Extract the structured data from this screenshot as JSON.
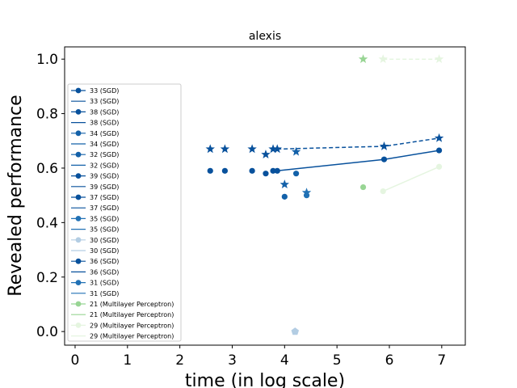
{
  "chart_data": {
    "type": "scatter",
    "title": "alexis",
    "xlabel": "time (in log scale)",
    "ylabel": "Revealed performance",
    "xlim": [
      -0.2,
      7.45
    ],
    "ylim": [
      -0.05,
      1.045
    ],
    "xticks": [
      0,
      1,
      2,
      3,
      4,
      5,
      6,
      7
    ],
    "yticks": [
      0.0,
      0.2,
      0.4,
      0.6,
      0.8,
      1.0
    ],
    "tick_labels_x": [
      "0",
      "1",
      "2",
      "3",
      "4",
      "5",
      "6",
      "7"
    ],
    "tick_labels_y": [
      "0.0",
      "0.2",
      "0.4",
      "0.6",
      "0.8",
      "1.0"
    ],
    "grid": false,
    "legend_position": "center-left",
    "colors": {
      "dark_blue": "#08519c",
      "mid_blue": "#2171b5",
      "light_blue": "#b3cde3",
      "green": "#98d594",
      "pale_green": "#e5f5e0"
    },
    "legend": [
      {
        "label": "33 (SGD)",
        "kind": "marker",
        "color": "#08519c"
      },
      {
        "label": "33 (SGD)",
        "kind": "line",
        "color": "#08519c"
      },
      {
        "label": "38 (SGD)",
        "kind": "marker",
        "color": "#08519c"
      },
      {
        "label": "38 (SGD)",
        "kind": "line",
        "color": "#08519c"
      },
      {
        "label": "34 (SGD)",
        "kind": "marker",
        "color": "#1361a9"
      },
      {
        "label": "34 (SGD)",
        "kind": "line",
        "color": "#1361a9"
      },
      {
        "label": "32 (SGD)",
        "kind": "marker",
        "color": "#1361a9"
      },
      {
        "label": "32 (SGD)",
        "kind": "line",
        "color": "#1361a9"
      },
      {
        "label": "39 (SGD)",
        "kind": "marker",
        "color": "#08519c"
      },
      {
        "label": "39 (SGD)",
        "kind": "line",
        "color": "#08519c"
      },
      {
        "label": "37 (SGD)",
        "kind": "marker",
        "color": "#08519c"
      },
      {
        "label": "37 (SGD)",
        "kind": "line",
        "color": "#08519c"
      },
      {
        "label": "35 (SGD)",
        "kind": "marker",
        "color": "#2171b5"
      },
      {
        "label": "35 (SGD)",
        "kind": "line",
        "color": "#2171b5"
      },
      {
        "label": "30 (SGD)",
        "kind": "marker",
        "color": "#b3cde3"
      },
      {
        "label": "30 (SGD)",
        "kind": "line",
        "color": "#b3cde3"
      },
      {
        "label": "36 (SGD)",
        "kind": "marker",
        "color": "#08519c"
      },
      {
        "label": "36 (SGD)",
        "kind": "line",
        "color": "#08519c"
      },
      {
        "label": "31 (SGD)",
        "kind": "marker",
        "color": "#2171b5"
      },
      {
        "label": "31 (SGD)",
        "kind": "line",
        "color": "#2171b5"
      },
      {
        "label": "21 (Multilayer Perceptron)",
        "kind": "marker",
        "color": "#98d594"
      },
      {
        "label": "21 (Multilayer Perceptron)",
        "kind": "line",
        "color": "#98d594"
      },
      {
        "label": "29 (Multilayer Perceptron)",
        "kind": "marker",
        "color": "#e5f5e0"
      },
      {
        "label": "29 (Multilayer Perceptron)",
        "kind": "line",
        "color": "#e5f5e0"
      }
    ],
    "points": [
      {
        "x": 2.58,
        "y": 0.59,
        "marker": "circle",
        "color": "#08519c"
      },
      {
        "x": 2.86,
        "y": 0.59,
        "marker": "circle",
        "color": "#08519c"
      },
      {
        "x": 3.38,
        "y": 0.59,
        "marker": "circle",
        "color": "#08519c"
      },
      {
        "x": 3.64,
        "y": 0.58,
        "marker": "circle",
        "color": "#08519c"
      },
      {
        "x": 3.78,
        "y": 0.59,
        "marker": "circle",
        "color": "#08519c"
      },
      {
        "x": 3.86,
        "y": 0.59,
        "marker": "circle",
        "color": "#08519c"
      },
      {
        "x": 4.0,
        "y": 0.495,
        "marker": "circle",
        "color": "#1361a9"
      },
      {
        "x": 4.22,
        "y": 0.58,
        "marker": "circle",
        "color": "#1361a9"
      },
      {
        "x": 4.42,
        "y": 0.5,
        "marker": "circle",
        "color": "#2171b5"
      },
      {
        "x": 2.58,
        "y": 0.67,
        "marker": "star",
        "color": "#08519c"
      },
      {
        "x": 2.86,
        "y": 0.67,
        "marker": "star",
        "color": "#08519c"
      },
      {
        "x": 3.38,
        "y": 0.67,
        "marker": "star",
        "color": "#08519c"
      },
      {
        "x": 3.64,
        "y": 0.65,
        "marker": "star",
        "color": "#08519c"
      },
      {
        "x": 3.78,
        "y": 0.67,
        "marker": "star",
        "color": "#08519c"
      },
      {
        "x": 3.86,
        "y": 0.67,
        "marker": "star",
        "color": "#08519c"
      },
      {
        "x": 4.0,
        "y": 0.54,
        "marker": "star",
        "color": "#1361a9"
      },
      {
        "x": 4.22,
        "y": 0.66,
        "marker": "star",
        "color": "#1361a9"
      },
      {
        "x": 4.42,
        "y": 0.51,
        "marker": "star",
        "color": "#2171b5"
      },
      {
        "x": 5.5,
        "y": 0.53,
        "marker": "circle",
        "color": "#98d594"
      },
      {
        "x": 5.5,
        "y": 1.0,
        "marker": "star",
        "color": "#98d594"
      },
      {
        "x": 4.2,
        "y": 0.0,
        "marker": "pentagon",
        "color": "#b3cde3"
      },
      {
        "x": 5.88,
        "y": 0.515,
        "marker": "circle",
        "color": "#e5f5e0"
      },
      {
        "x": 5.88,
        "y": 1.0,
        "marker": "star",
        "color": "#e5f5e0"
      },
      {
        "x": 6.95,
        "y": 0.605,
        "marker": "circle",
        "color": "#e5f5e0"
      },
      {
        "x": 6.95,
        "y": 1.0,
        "marker": "star",
        "color": "#e5f5e0"
      },
      {
        "x": 5.9,
        "y": 0.632,
        "marker": "circle",
        "color": "#08519c"
      },
      {
        "x": 6.95,
        "y": 0.665,
        "marker": "circle",
        "color": "#08519c"
      },
      {
        "x": 5.9,
        "y": 0.68,
        "marker": "star",
        "color": "#08519c"
      },
      {
        "x": 6.95,
        "y": 0.71,
        "marker": "star",
        "color": "#08519c"
      }
    ],
    "lines": [
      {
        "x": [
          3.86,
          5.9,
          6.95
        ],
        "y": [
          0.59,
          0.632,
          0.665
        ],
        "style": "solid",
        "color": "#08519c"
      },
      {
        "x": [
          3.86,
          5.9,
          6.95
        ],
        "y": [
          0.67,
          0.68,
          0.71
        ],
        "style": "dashed",
        "color": "#08519c"
      },
      {
        "x": [
          5.88,
          6.95
        ],
        "y": [
          0.515,
          0.605
        ],
        "style": "solid",
        "color": "#e5f5e0"
      },
      {
        "x": [
          5.88,
          6.95
        ],
        "y": [
          1.0,
          1.0
        ],
        "style": "dashed",
        "color": "#e5f5e0"
      }
    ]
  }
}
